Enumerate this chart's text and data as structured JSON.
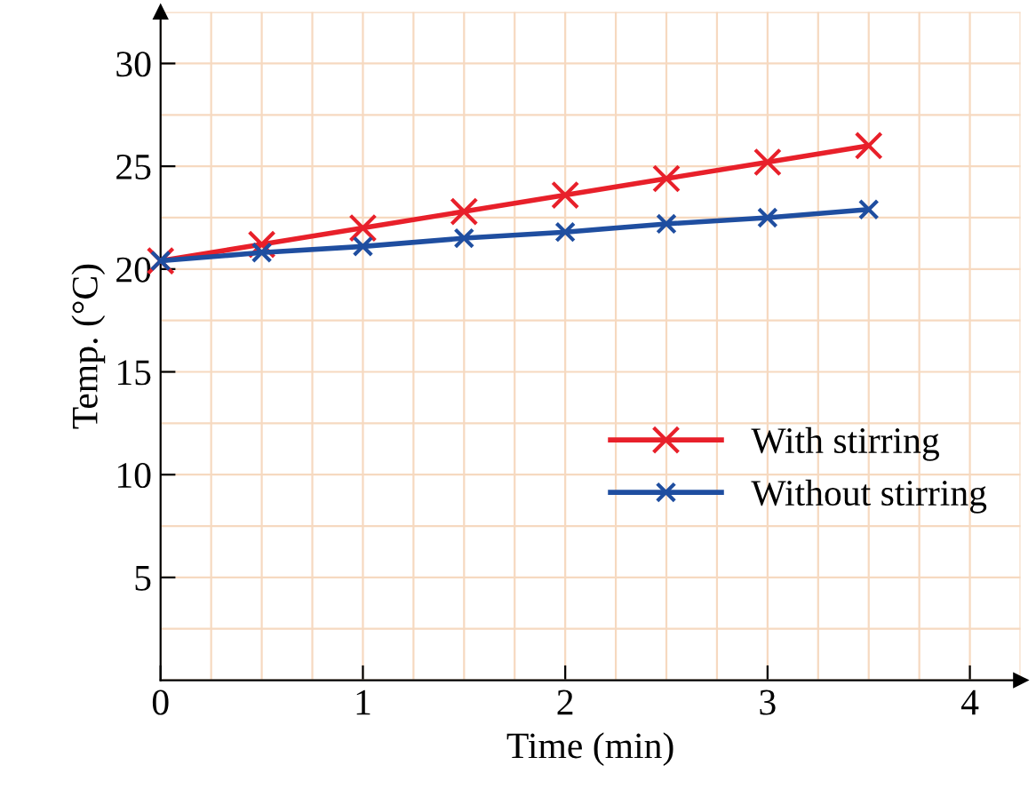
{
  "chart_data": {
    "type": "line",
    "xlabel": "Time (min)",
    "ylabel": "Temp. (°C)",
    "x": [
      0,
      0.5,
      1,
      1.5,
      2,
      2.5,
      3,
      3.5
    ],
    "series": [
      {
        "name": "With stirring",
        "color": "#e8202a",
        "values": [
          20.4,
          21.2,
          22.0,
          22.8,
          23.6,
          24.4,
          25.2,
          26.0
        ]
      },
      {
        "name": "Without stirring",
        "color": "#1f4ea0",
        "values": [
          20.4,
          20.8,
          21.1,
          21.5,
          21.8,
          22.2,
          22.5,
          22.9
        ]
      }
    ],
    "xlim": [
      0,
      4.25
    ],
    "ylim": [
      0,
      32.5
    ],
    "xticks": [
      0,
      1,
      2,
      3,
      4
    ],
    "yticks": [
      5,
      10,
      15,
      20,
      25,
      30
    ],
    "grid": true,
    "legend": "lower right",
    "marker": "cross",
    "line_style": "solid"
  }
}
